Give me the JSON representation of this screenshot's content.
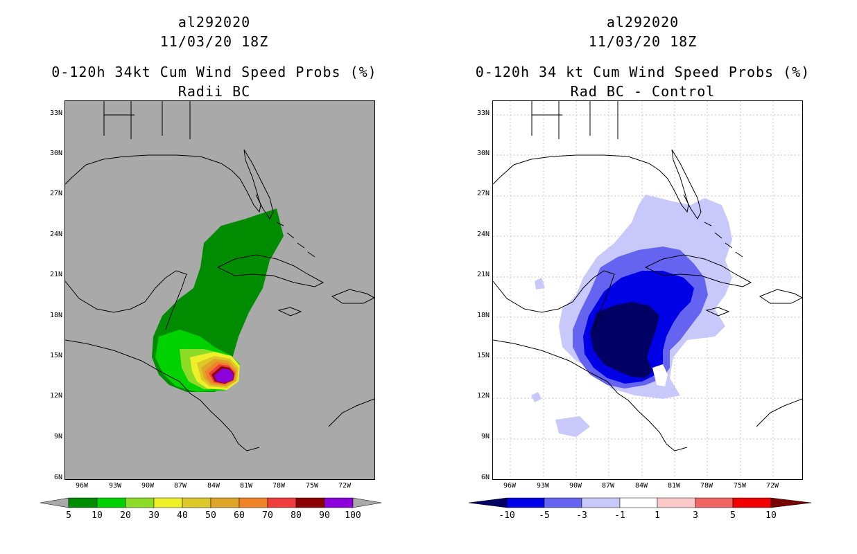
{
  "left": {
    "title_storm": "al292020",
    "title_date": "11/03/20 18Z",
    "title_product": "0-120h 34kt Cum Wind Speed Probs (%)",
    "title_sub": "Radii BC",
    "legend_labels": [
      "5",
      "10",
      "20",
      "30",
      "40",
      "50",
      "60",
      "70",
      "80",
      "90",
      "100"
    ],
    "legend_colors": [
      "#008c00",
      "#00d200",
      "#8cdc28",
      "#f0f028",
      "#dcc828",
      "#e0a428",
      "#f08228",
      "#f03c3c",
      "#8c0000",
      "#8c00dc"
    ],
    "ocean_color": "#a9a9a9"
  },
  "right": {
    "title_storm": "al292020",
    "title_date": "11/03/20 18Z",
    "title_product": "0-120h 34 kt Cum Wind Speed Probs (%)",
    "title_sub": "Rad BC - Control",
    "legend_labels": [
      "-10",
      "-5",
      "-3",
      "-1",
      "1",
      "3",
      "5",
      "10"
    ],
    "legend_colors": [
      "#0000e6",
      "#6464f0",
      "#c8c8fa",
      "#ffffff",
      "#fac8c8",
      "#f06464",
      "#f00000"
    ],
    "below_color": "#000064",
    "above_color": "#780000"
  },
  "axes": {
    "lat_labels": [
      "33N",
      "30N",
      "27N",
      "24N",
      "21N",
      "18N",
      "15N",
      "12N",
      "9N",
      "6N"
    ],
    "lon_labels": [
      "96W",
      "93W",
      "90W",
      "87W",
      "84W",
      "81W",
      "78W",
      "75W",
      "72W"
    ]
  }
}
